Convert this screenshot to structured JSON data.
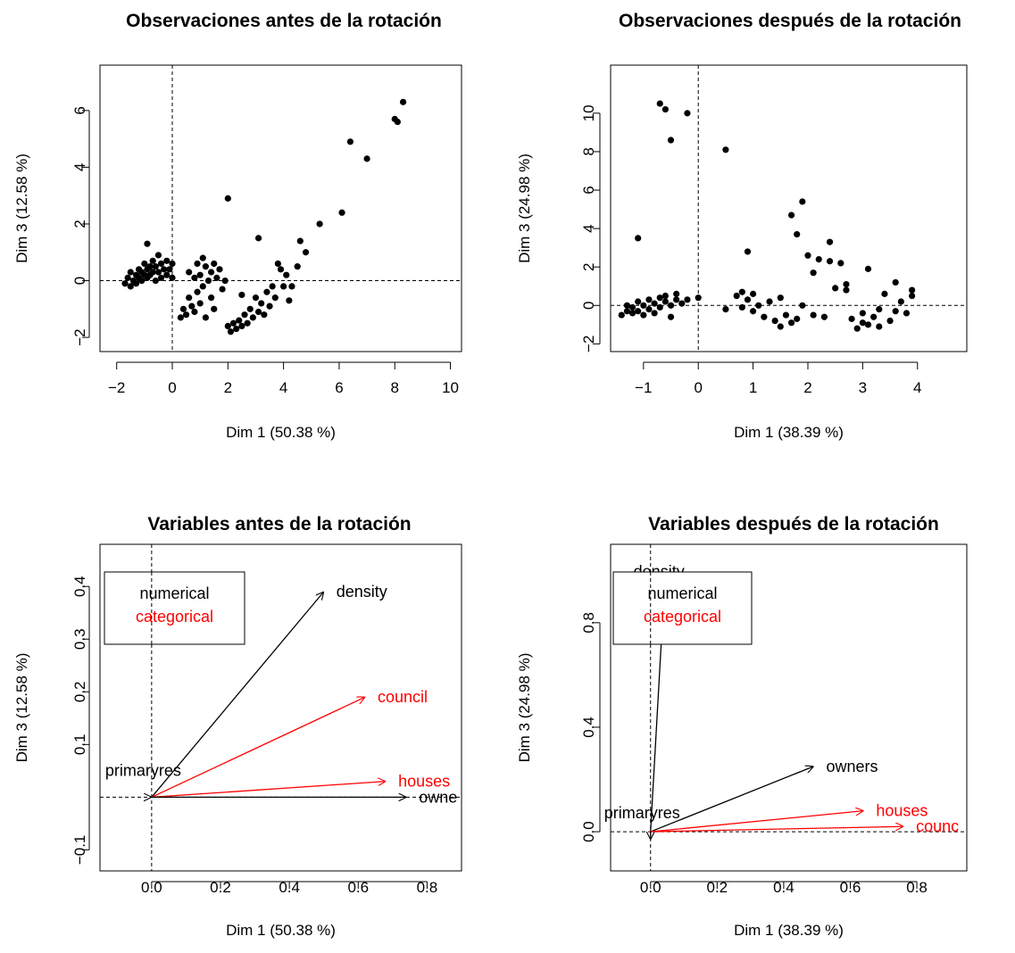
{
  "chart_data": [
    {
      "type": "scatter",
      "title": "Observaciones antes de la rotación",
      "xlabel": "Dim 1 (50.38 %)",
      "ylabel": "Dim 3 (12.58 %)",
      "xlim": [
        -2.6,
        10.4
      ],
      "ylim": [
        -2.5,
        7.6
      ],
      "xticks": [
        -2,
        0,
        2,
        4,
        6,
        8,
        10
      ],
      "yticks": [
        -2,
        0,
        2,
        4,
        6
      ],
      "tick_labels_x": [
        "−2",
        "0",
        "2",
        "4",
        "6",
        "8",
        "10"
      ],
      "tick_labels_y": [
        "−2",
        "0",
        "2",
        "4",
        "6"
      ],
      "reference_lines": {
        "x": 0,
        "y": 0
      },
      "points": [
        [
          -1.7,
          -0.1
        ],
        [
          -1.6,
          0.1
        ],
        [
          -1.5,
          0.3
        ],
        [
          -1.5,
          -0.2
        ],
        [
          -1.4,
          0.0
        ],
        [
          -1.3,
          0.2
        ],
        [
          -1.3,
          -0.1
        ],
        [
          -1.2,
          0.4
        ],
        [
          -1.2,
          0.1
        ],
        [
          -1.1,
          0.3
        ],
        [
          -1.1,
          0.0
        ],
        [
          -1.0,
          0.6
        ],
        [
          -1.0,
          0.2
        ],
        [
          -0.9,
          1.3
        ],
        [
          -0.9,
          0.4
        ],
        [
          -0.9,
          0.1
        ],
        [
          -0.8,
          0.5
        ],
        [
          -0.8,
          0.2
        ],
        [
          -0.7,
          0.7
        ],
        [
          -0.7,
          0.3
        ],
        [
          -0.6,
          0.5
        ],
        [
          -0.6,
          0.0
        ],
        [
          -0.5,
          0.9
        ],
        [
          -0.5,
          0.3
        ],
        [
          -0.4,
          0.6
        ],
        [
          -0.4,
          0.1
        ],
        [
          -0.3,
          0.4
        ],
        [
          -0.2,
          0.7
        ],
        [
          -0.2,
          0.2
        ],
        [
          -0.1,
          0.4
        ],
        [
          0.0,
          0.1
        ],
        [
          0.0,
          0.6
        ],
        [
          0.3,
          -1.3
        ],
        [
          0.4,
          -1.0
        ],
        [
          0.5,
          -1.2
        ],
        [
          0.6,
          -0.6
        ],
        [
          0.6,
          0.3
        ],
        [
          0.7,
          -0.9
        ],
        [
          0.8,
          0.1
        ],
        [
          0.8,
          -1.1
        ],
        [
          0.9,
          0.6
        ],
        [
          0.9,
          -0.4
        ],
        [
          1.0,
          0.2
        ],
        [
          1.0,
          -0.8
        ],
        [
          1.1,
          0.8
        ],
        [
          1.1,
          -0.2
        ],
        [
          1.2,
          0.5
        ],
        [
          1.2,
          -1.3
        ],
        [
          1.3,
          0.0
        ],
        [
          1.4,
          0.3
        ],
        [
          1.4,
          -0.6
        ],
        [
          1.5,
          0.6
        ],
        [
          1.5,
          -1.0
        ],
        [
          1.6,
          0.1
        ],
        [
          1.7,
          0.4
        ],
        [
          1.8,
          -0.3
        ],
        [
          1.9,
          0.0
        ],
        [
          2.0,
          2.9
        ],
        [
          2.0,
          -1.6
        ],
        [
          2.1,
          -1.8
        ],
        [
          2.2,
          -1.5
        ],
        [
          2.3,
          -1.7
        ],
        [
          2.4,
          -1.4
        ],
        [
          2.5,
          -1.6
        ],
        [
          2.5,
          -0.5
        ],
        [
          2.6,
          -1.2
        ],
        [
          2.7,
          -1.5
        ],
        [
          2.8,
          -1.0
        ],
        [
          2.9,
          -1.3
        ],
        [
          3.0,
          -0.6
        ],
        [
          3.1,
          -1.1
        ],
        [
          3.1,
          1.5
        ],
        [
          3.2,
          -0.8
        ],
        [
          3.3,
          -1.2
        ],
        [
          3.4,
          -0.4
        ],
        [
          3.5,
          -0.9
        ],
        [
          3.6,
          -0.2
        ],
        [
          3.7,
          -0.6
        ],
        [
          3.8,
          0.6
        ],
        [
          3.9,
          0.4
        ],
        [
          4.0,
          -0.2
        ],
        [
          4.1,
          0.2
        ],
        [
          4.2,
          -0.7
        ],
        [
          4.3,
          -0.2
        ],
        [
          4.5,
          0.5
        ],
        [
          4.6,
          1.4
        ],
        [
          4.8,
          1.0
        ],
        [
          5.3,
          2.0
        ],
        [
          6.1,
          2.4
        ],
        [
          6.4,
          4.9
        ],
        [
          7.0,
          4.3
        ],
        [
          8.0,
          5.7
        ],
        [
          8.1,
          5.6
        ],
        [
          8.3,
          6.3
        ]
      ]
    },
    {
      "type": "scatter",
      "title": "Observaciones después de la rotación",
      "xlabel": "Dim 1 (38.39 %)",
      "ylabel": "Dim 3 (24.98 %)",
      "xlim": [
        -1.6,
        4.9
      ],
      "ylim": [
        -2.4,
        12.5
      ],
      "xticks": [
        -1,
        0,
        1,
        2,
        3,
        4
      ],
      "yticks": [
        -2,
        0,
        2,
        4,
        6,
        8,
        10
      ],
      "tick_labels_x": [
        "−1",
        "0",
        "1",
        "2",
        "3",
        "4"
      ],
      "tick_labels_y": [
        "−2",
        "0",
        "2",
        "4",
        "6",
        "8",
        "10"
      ],
      "reference_lines": {
        "x": 0,
        "y": 0
      },
      "points": [
        [
          -1.4,
          -0.5
        ],
        [
          -1.3,
          -0.3
        ],
        [
          -1.3,
          0.0
        ],
        [
          -1.2,
          -0.4
        ],
        [
          -1.2,
          -0.1
        ],
        [
          -1.1,
          3.5
        ],
        [
          -1.1,
          0.2
        ],
        [
          -1.1,
          -0.3
        ],
        [
          -1.0,
          0.0
        ],
        [
          -1.0,
          -0.5
        ],
        [
          -0.9,
          0.3
        ],
        [
          -0.9,
          -0.2
        ],
        [
          -0.8,
          0.1
        ],
        [
          -0.8,
          -0.4
        ],
        [
          -0.7,
          0.4
        ],
        [
          -0.7,
          -0.1
        ],
        [
          -0.6,
          0.2
        ],
        [
          -0.6,
          0.5
        ],
        [
          -0.5,
          8.6
        ],
        [
          -0.5,
          0.0
        ],
        [
          -0.4,
          0.3
        ],
        [
          -0.4,
          0.6
        ],
        [
          -0.3,
          0.1
        ],
        [
          -0.7,
          10.5
        ],
        [
          -0.6,
          10.2
        ],
        [
          -0.5,
          -0.6
        ],
        [
          -0.2,
          10.0
        ],
        [
          -0.2,
          0.3
        ],
        [
          0.0,
          0.4
        ],
        [
          0.5,
          8.1
        ],
        [
          0.5,
          -0.2
        ],
        [
          0.7,
          0.5
        ],
        [
          0.8,
          0.7
        ],
        [
          0.8,
          -0.1
        ],
        [
          0.9,
          2.8
        ],
        [
          0.9,
          0.3
        ],
        [
          1.0,
          0.6
        ],
        [
          1.0,
          -0.3
        ],
        [
          1.1,
          0.0
        ],
        [
          1.2,
          -0.6
        ],
        [
          1.3,
          0.2
        ],
        [
          1.4,
          -0.8
        ],
        [
          1.5,
          -1.1
        ],
        [
          1.5,
          0.4
        ],
        [
          1.6,
          -0.5
        ],
        [
          1.7,
          4.7
        ],
        [
          1.7,
          -0.9
        ],
        [
          1.8,
          3.7
        ],
        [
          1.8,
          -0.7
        ],
        [
          1.9,
          5.4
        ],
        [
          1.9,
          0.0
        ],
        [
          2.0,
          2.6
        ],
        [
          2.1,
          -0.5
        ],
        [
          2.1,
          1.7
        ],
        [
          2.2,
          2.4
        ],
        [
          2.3,
          -0.6
        ],
        [
          2.4,
          3.3
        ],
        [
          2.4,
          2.3
        ],
        [
          2.5,
          0.9
        ],
        [
          2.6,
          2.2
        ],
        [
          2.7,
          1.1
        ],
        [
          2.7,
          0.8
        ],
        [
          2.8,
          -0.7
        ],
        [
          2.9,
          -1.2
        ],
        [
          3.0,
          -0.4
        ],
        [
          3.0,
          -0.9
        ],
        [
          3.1,
          1.9
        ],
        [
          3.1,
          -1.0
        ],
        [
          3.2,
          -0.6
        ],
        [
          3.3,
          -0.2
        ],
        [
          3.3,
          -1.1
        ],
        [
          3.4,
          0.6
        ],
        [
          3.5,
          -0.8
        ],
        [
          3.6,
          -0.3
        ],
        [
          3.6,
          1.2
        ],
        [
          3.7,
          0.2
        ],
        [
          3.8,
          -0.4
        ],
        [
          3.9,
          0.8
        ],
        [
          3.9,
          0.5
        ]
      ]
    },
    {
      "type": "vector",
      "title": "Variables antes de la rotación",
      "xlabel": "Dim 1 (50.38 %)",
      "ylabel": "Dim 3 (12.58 %)",
      "xlim": [
        -0.15,
        0.9
      ],
      "ylim": [
        -0.14,
        0.48
      ],
      "xticks": [
        0.0,
        0.2,
        0.4,
        0.6,
        0.8
      ],
      "yticks": [
        -0.1,
        0.1,
        0.2,
        0.3,
        0.4
      ],
      "tick_labels_x": [
        "0.0",
        "0.2",
        "0.4",
        "0.6",
        "0.8"
      ],
      "tick_labels_y": [
        "−0.1",
        "0.1",
        "0.2",
        "0.3",
        "0.4"
      ],
      "reference_lines": {
        "x": 0,
        "y": 0
      },
      "legend": {
        "position": "top-left",
        "entries": [
          {
            "label": "numerical",
            "color": "#000000"
          },
          {
            "label": "categorical",
            "color": "#ff0000"
          }
        ]
      },
      "variables": [
        {
          "name": "density",
          "x": 0.5,
          "y": 0.39,
          "color": "#000000"
        },
        {
          "name": "council",
          "x": 0.62,
          "y": 0.19,
          "color": "#ff0000"
        },
        {
          "name": "houses",
          "x": 0.68,
          "y": 0.03,
          "color": "#ff0000"
        },
        {
          "name": "owne",
          "x": 0.74,
          "y": 0.0,
          "color": "#000000"
        },
        {
          "name": "primaryres",
          "x": 0.0,
          "y": 0.0,
          "color": "#000000"
        }
      ]
    },
    {
      "type": "vector",
      "title": "Variables después de la rotación",
      "xlabel": "Dim 1 (38.39 %)",
      "ylabel": "Dim 3 (24.98 %)",
      "xlim": [
        -0.12,
        0.95
      ],
      "ylim": [
        -0.15,
        1.1
      ],
      "xticks": [
        0.0,
        0.2,
        0.4,
        0.6,
        0.8
      ],
      "yticks": [
        0.0,
        0.4,
        0.8
      ],
      "tick_labels_x": [
        "0.0",
        "0.2",
        "0.4",
        "0.6",
        "0.8"
      ],
      "tick_labels_y": [
        "0.0",
        "0.4",
        "0.8"
      ],
      "reference_lines": {
        "x": 0,
        "y": 0
      },
      "legend": {
        "position": "top-left",
        "entries": [
          {
            "label": "numerical",
            "color": "#000000"
          },
          {
            "label": "categorical",
            "color": "#ff0000"
          }
        ]
      },
      "variables": [
        {
          "name": "density",
          "x": 0.04,
          "y": 0.9,
          "color": "#000000"
        },
        {
          "name": "owners",
          "x": 0.49,
          "y": 0.25,
          "color": "#000000"
        },
        {
          "name": "houses",
          "x": 0.64,
          "y": 0.08,
          "color": "#ff0000"
        },
        {
          "name": "counc",
          "x": 0.76,
          "y": 0.02,
          "color": "#ff0000"
        },
        {
          "name": "primaryres",
          "x": 0.0,
          "y": -0.03,
          "color": "#000000"
        }
      ]
    }
  ]
}
